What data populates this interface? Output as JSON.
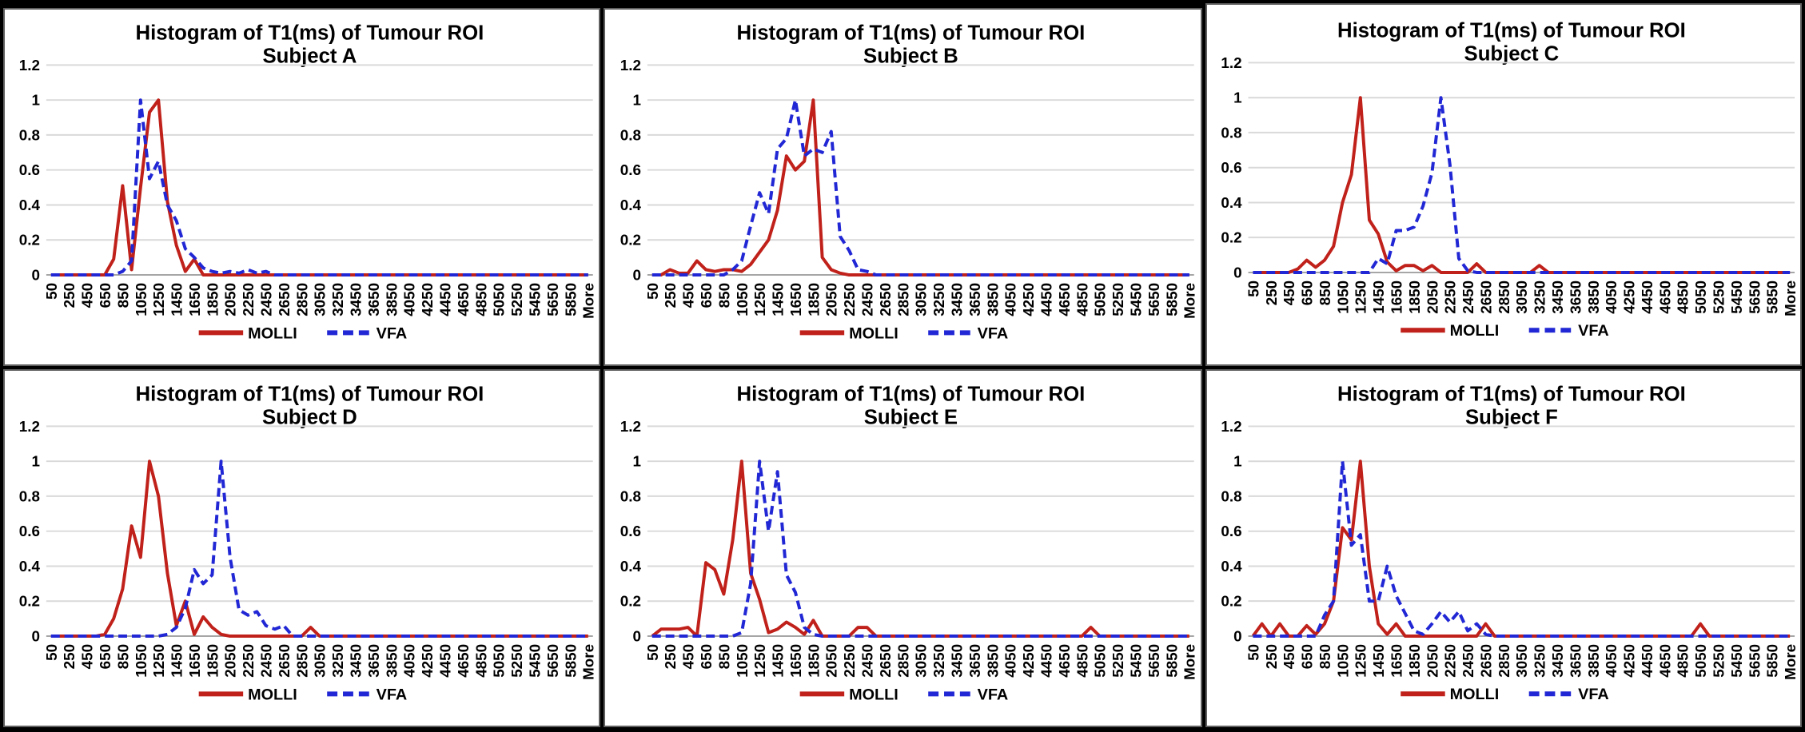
{
  "page": {
    "background_color": "#000000",
    "panel_background": "#ffffff",
    "panel_border_color": "#5f5f5f"
  },
  "chart_data": {
    "type": "line",
    "title": "Histogram of T1(ms) of Tumour ROI",
    "grid": true,
    "gridline_color": "#d9d9d9",
    "baseline_color": "#a6a6a6",
    "ylim": [
      0,
      1.2
    ],
    "y_tick_labels": [
      "0",
      "0.2",
      "0.4",
      "0.6",
      "0.8",
      "1",
      "1.2"
    ],
    "x_bins": {
      "start": 50,
      "step": 100,
      "count": 61,
      "note": "last bin is the More overflow bin; values padded with zeros to 61 bins"
    },
    "x_tick_labels": [
      "50",
      "250",
      "450",
      "650",
      "850",
      "1050",
      "1250",
      "1450",
      "1650",
      "1850",
      "2050",
      "2250",
      "2450",
      "2650",
      "2850",
      "3050",
      "3250",
      "3450",
      "3650",
      "3850",
      "4050",
      "4250",
      "4450",
      "4650",
      "4850",
      "5050",
      "5250",
      "5450",
      "5650",
      "5850",
      "More"
    ],
    "legend": [
      {
        "label": "MOLLI",
        "color": "#c0211a",
        "line_style": "solid"
      },
      {
        "label": "VFA",
        "color": "#2127d4",
        "line_style": "dashed"
      }
    ],
    "panels": [
      {
        "subject": "Subject A",
        "series": [
          {
            "name": "MOLLI",
            "values": [
              0,
              0,
              0,
              0,
              0,
              0,
              0,
              0.09,
              0.51,
              0.03,
              0.5,
              0.93,
              1,
              0.42,
              0.17,
              0.02,
              0.09
            ]
          },
          {
            "name": "VFA",
            "values": [
              0,
              0,
              0,
              0,
              0,
              0,
              0,
              0,
              0.02,
              0.08,
              1,
              0.55,
              0.65,
              0.4,
              0.31,
              0.15,
              0.1,
              0.04,
              0.02,
              0.01,
              0.02,
              0.01,
              0.03,
              0.01,
              0.02
            ]
          }
        ]
      },
      {
        "subject": "Subject B",
        "series": [
          {
            "name": "MOLLI",
            "values": [
              0,
              0,
              0.03,
              0.01,
              0.01,
              0.08,
              0.03,
              0.02,
              0.03,
              0.03,
              0.02,
              0.06,
              0.13,
              0.2,
              0.37,
              0.68,
              0.6,
              0.65,
              1,
              0.1,
              0.03,
              0.01
            ]
          },
          {
            "name": "VFA",
            "values": [
              0,
              0,
              0,
              0,
              0,
              0,
              0,
              0,
              0,
              0.03,
              0.08,
              0.28,
              0.47,
              0.35,
              0.72,
              0.78,
              1,
              0.68,
              0.72,
              0.7,
              0.82,
              0.22,
              0.14,
              0.03,
              0.02
            ]
          }
        ]
      },
      {
        "subject": "Subject C",
        "series": [
          {
            "name": "MOLLI",
            "values": [
              0,
              0,
              0,
              0,
              0,
              0.02,
              0.07,
              0.03,
              0.07,
              0.15,
              0.4,
              0.56,
              1,
              0.3,
              0.22,
              0.06,
              0.01,
              0.04,
              0.04,
              0.01,
              0.04,
              0,
              0,
              0,
              0,
              0.05,
              0,
              0,
              0,
              0,
              0,
              0,
              0.04
            ]
          },
          {
            "name": "VFA",
            "values": [
              0,
              0,
              0,
              0,
              0,
              0,
              0,
              0,
              0,
              0,
              0,
              0,
              0,
              0,
              0.08,
              0.05,
              0.24,
              0.24,
              0.26,
              0.38,
              0.57,
              1,
              0.62,
              0.08,
              0.01
            ]
          }
        ]
      },
      {
        "subject": "Subject D",
        "series": [
          {
            "name": "MOLLI",
            "values": [
              0,
              0,
              0,
              0,
              0,
              0,
              0.01,
              0.1,
              0.27,
              0.63,
              0.45,
              1,
              0.8,
              0.36,
              0.06,
              0.2,
              0.01,
              0.11,
              0.05,
              0.01,
              0,
              0,
              0,
              0,
              0,
              0,
              0,
              0,
              0,
              0.05
            ]
          },
          {
            "name": "VFA",
            "values": [
              0,
              0,
              0,
              0,
              0,
              0,
              0,
              0,
              0,
              0,
              0,
              0,
              0,
              0.01,
              0.05,
              0.16,
              0.38,
              0.3,
              0.35,
              1,
              0.45,
              0.15,
              0.12,
              0.14,
              0.06,
              0.04,
              0.06
            ]
          }
        ]
      },
      {
        "subject": "Subject E",
        "series": [
          {
            "name": "MOLLI",
            "values": [
              0,
              0.04,
              0.04,
              0.04,
              0.05,
              0,
              0.42,
              0.38,
              0.24,
              0.55,
              1,
              0.36,
              0.21,
              0.02,
              0.04,
              0.08,
              0.05,
              0.01,
              0.09,
              0,
              0,
              0,
              0,
              0.05,
              0.05,
              0,
              0,
              0,
              0,
              0,
              0,
              0,
              0,
              0,
              0,
              0,
              0,
              0,
              0,
              0,
              0,
              0,
              0,
              0,
              0,
              0,
              0,
              0,
              0,
              0.05
            ]
          },
          {
            "name": "VFA",
            "values": [
              0,
              0,
              0,
              0,
              0,
              0,
              0,
              0,
              0,
              0,
              0.02,
              0.3,
              1,
              0.6,
              0.94,
              0.35,
              0.25,
              0.05,
              0.01
            ]
          }
        ]
      },
      {
        "subject": "Subject F",
        "series": [
          {
            "name": "MOLLI",
            "values": [
              0,
              0.07,
              0,
              0.07,
              0,
              0,
              0.06,
              0.01,
              0.07,
              0.2,
              0.62,
              0.55,
              1,
              0.4,
              0.07,
              0.01,
              0.07,
              0,
              0,
              0,
              0,
              0,
              0,
              0,
              0,
              0,
              0.07,
              0,
              0,
              0,
              0,
              0,
              0,
              0,
              0,
              0,
              0,
              0,
              0,
              0,
              0,
              0,
              0,
              0,
              0,
              0,
              0,
              0,
              0,
              0,
              0.07
            ]
          },
          {
            "name": "VFA",
            "values": [
              0,
              0,
              0,
              0,
              0,
              0,
              0,
              0,
              0.12,
              0.2,
              1,
              0.52,
              0.58,
              0.2,
              0.2,
              0.4,
              0.23,
              0.13,
              0.03,
              0.01,
              0.07,
              0.14,
              0.08,
              0.14,
              0.03,
              0.07,
              0.01
            ]
          }
        ]
      }
    ]
  }
}
